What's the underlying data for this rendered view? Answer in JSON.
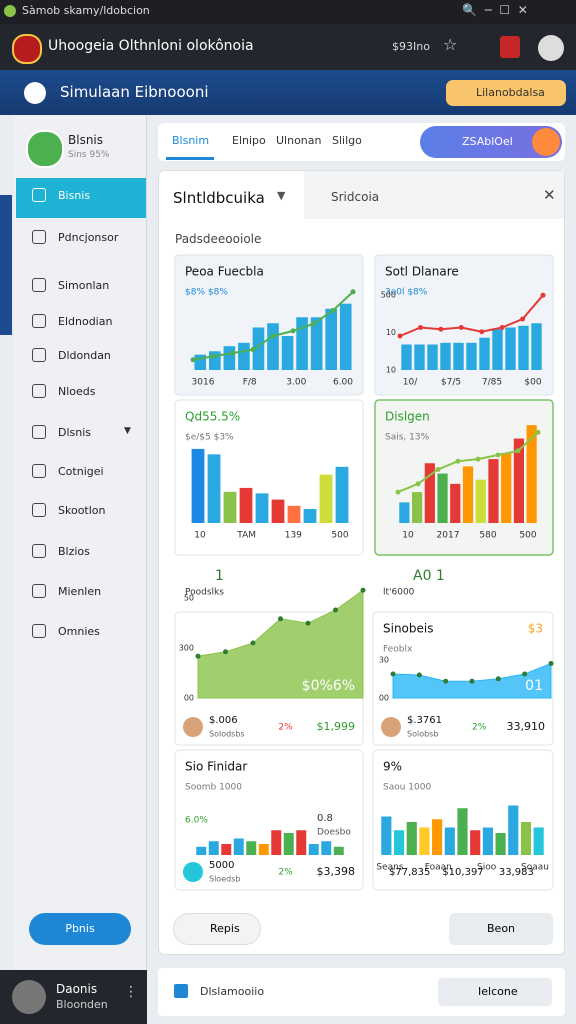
{
  "window": {
    "title": "Sàmob skamy/ldobcion"
  },
  "browser": {
    "site_title": "Uhoogeia Olthnloni olokônoia",
    "price": "$93Ino"
  },
  "app": {
    "title": "Simulaan Eibnoooni",
    "button": "Lilanobdalsa"
  },
  "sidebar": {
    "profile_name": "Blsnis",
    "profile_sub": "Sins 95%",
    "items": [
      "Bisnis",
      "Pdncjonsor",
      "Simonlan",
      "Eldnodian",
      "Dldondan",
      "Nloeds",
      "Dlsnis",
      "Cotnigei",
      "Skootlon",
      "Blzios",
      "Mienlen",
      "Omnies"
    ],
    "button": "Pbnis"
  },
  "user": {
    "name": "Daonis",
    "sub": "Bloonden"
  },
  "tabs": {
    "items": [
      "Blsnim",
      "Elnipo",
      "Ulnonan",
      "Slilgo"
    ],
    "button": "ZSAblOel"
  },
  "panel": {
    "title": "Slntldbcuika",
    "title2": "Sridcoia",
    "section": "Padsdeeooiole"
  },
  "cards": [
    {
      "title": "Peoa Fuecbla",
      "subtitle": "$8% $8%",
      "values": [
        18,
        22,
        28,
        32,
        50,
        55,
        40,
        62,
        62,
        72,
        78
      ],
      "color": "#29a9e0",
      "line": [
        12,
        16,
        20,
        24,
        40,
        46,
        54,
        70,
        92
      ],
      "line_color": "#4caf50",
      "xlabels": [
        "3016",
        "F/8",
        "3.00",
        "6.00"
      ]
    },
    {
      "title": "Sotl Dlanare",
      "subtitle": "3o0l $8%",
      "values": [
        30,
        30,
        30,
        32,
        32,
        32,
        38,
        48,
        50,
        52,
        55
      ],
      "color": "#29a9e0",
      "line": [
        40,
        50,
        48,
        50,
        45,
        50,
        60,
        88
      ],
      "line_color": "#e53935",
      "ylabels": [
        "500",
        "10",
        "10"
      ],
      "xlabels": [
        "10/",
        "$7/5",
        "7/85",
        "$00"
      ]
    },
    {
      "title": "Qd55.5%",
      "subtitle": "$e/$5 $3%",
      "values": [
        95,
        88,
        40,
        45,
        38,
        30,
        22,
        18,
        62,
        72
      ],
      "colors": [
        "#1e88e5",
        "#29a9e0",
        "#8bc34a",
        "#e53935",
        "#29a9e0",
        "#e53935",
        "#ff7043",
        "#29a9e0",
        "#cddc39",
        "#29a9e0"
      ],
      "xlabels": [
        "10",
        "TAM",
        "139",
        "500"
      ]
    },
    {
      "title": "Dislgen",
      "subtitle": "Sais, 13%",
      "values": [
        20,
        30,
        58,
        48,
        38,
        55,
        42,
        62,
        68,
        82,
        95
      ],
      "colors": [
        "#29a9e0",
        "#8bc34a",
        "#e53935",
        "#4caf50",
        "#e53935",
        "#ff9800",
        "#cddc39",
        "#e53935",
        "#ff9800",
        "#e53935",
        "#ff9800"
      ],
      "line": [
        30,
        38,
        52,
        60,
        62,
        66,
        70,
        88
      ],
      "line_color": "#8bc34a",
      "xlabels": [
        "10",
        "2017",
        "580",
        "500"
      ]
    },
    {
      "head": "1",
      "head_sub": "Poodslks",
      "area": [
        38,
        42,
        50,
        72,
        68,
        80,
        98
      ],
      "area_color": "#8bc34a",
      "ylabels": [
        "50",
        "300",
        "00"
      ],
      "big": "$0%6%",
      "stats": [
        "$.006",
        "Solodsbs",
        "2%",
        "$1,999"
      ]
    },
    {
      "head": "A0 1",
      "head_sub": "lt'6000",
      "title": "Sinobeis",
      "subtitle": "Feoblx",
      "corner": "$3",
      "area": [
        50,
        48,
        35,
        35,
        40,
        50,
        72
      ],
      "area_color": "#29b6f6",
      "ylabels": [
        "30",
        "00"
      ],
      "big": "01",
      "stats": [
        "$.3761",
        "Solobsb",
        "2%",
        "33,910"
      ]
    },
    {
      "title": "Sio Finidar",
      "subtitle": "Soomb 1000",
      "note": "6.0%",
      "note2": "0.8",
      "note3": "Doesbo",
      "values": [
        15,
        25,
        20,
        30,
        25,
        20,
        45,
        40,
        45,
        20,
        25,
        15
      ],
      "colors": [
        "#29a9e0",
        "#29a9e0",
        "#e53935",
        "#29a9e0",
        "#4caf50",
        "#ff9800",
        "#e53935",
        "#4caf50",
        "#e53935",
        "#29a9e0",
        "#29a9e0",
        "#4caf50"
      ],
      "stats": [
        "5000",
        "Sloedsb",
        "2%",
        "$3,398"
      ]
    },
    {
      "title": "9%",
      "subtitle": "Saou 1000",
      "values": [
        70,
        45,
        60,
        50,
        65,
        50,
        85,
        45,
        50,
        40,
        90,
        60,
        50
      ],
      "colors": [
        "#29a9e0",
        "#26c6da",
        "#4caf50",
        "#ffca28",
        "#ff9800",
        "#29a9e0",
        "#4caf50",
        "#e53935",
        "#29a9e0",
        "#4caf50",
        "#29a9e0",
        "#8bc34a",
        "#26c6da"
      ],
      "xlabels": [
        "Seans",
        "Foaan",
        "Sioo",
        "Soaau"
      ],
      "stats": [
        "$77,835",
        "$10,397",
        "33,983"
      ]
    }
  ],
  "actions": {
    "left": "Repis",
    "right": "Beon"
  },
  "footer": {
    "label": "Dlslamooiio",
    "button": "Ielcone"
  }
}
